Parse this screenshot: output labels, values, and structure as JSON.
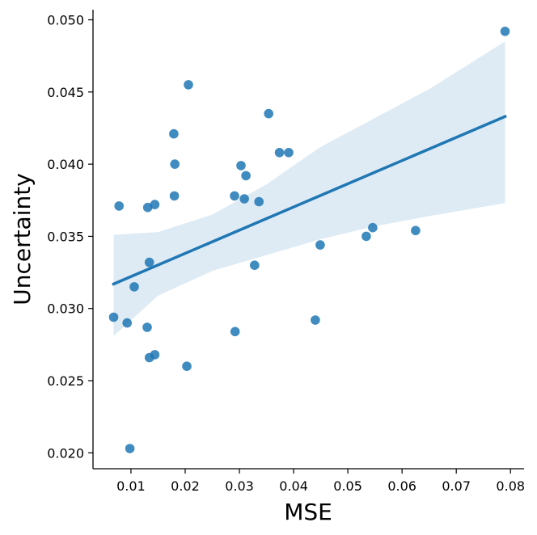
{
  "chart_data": {
    "type": "scatter",
    "title": "",
    "xlabel": "MSE",
    "ylabel": "Uncertainty",
    "xlim": [
      0.003,
      0.0825
    ],
    "ylim": [
      0.0189,
      0.0507
    ],
    "xticks": [
      0.01,
      0.02,
      0.03,
      0.04,
      0.05,
      0.06,
      0.07,
      0.08
    ],
    "xtick_labels": [
      "0.01",
      "0.02",
      "0.03",
      "0.04",
      "0.05",
      "0.06",
      "0.07",
      "0.08"
    ],
    "yticks": [
      0.02,
      0.025,
      0.03,
      0.035,
      0.04,
      0.045,
      0.05
    ],
    "ytick_labels": [
      "0.020",
      "0.025",
      "0.030",
      "0.035",
      "0.040",
      "0.045",
      "0.050"
    ],
    "grid": false,
    "colors": {
      "points": "#1f77b4",
      "line": "#1f77b4",
      "band": "#1f77b4"
    },
    "points": [
      {
        "x": 0.0068,
        "y": 0.0294
      },
      {
        "x": 0.0078,
        "y": 0.0371
      },
      {
        "x": 0.0093,
        "y": 0.029
      },
      {
        "x": 0.0098,
        "y": 0.0203
      },
      {
        "x": 0.0106,
        "y": 0.0315
      },
      {
        "x": 0.013,
        "y": 0.0287
      },
      {
        "x": 0.0131,
        "y": 0.037
      },
      {
        "x": 0.0134,
        "y": 0.0266
      },
      {
        "x": 0.0134,
        "y": 0.0332
      },
      {
        "x": 0.0144,
        "y": 0.0268
      },
      {
        "x": 0.0144,
        "y": 0.0372
      },
      {
        "x": 0.0179,
        "y": 0.0421
      },
      {
        "x": 0.018,
        "y": 0.0378
      },
      {
        "x": 0.0181,
        "y": 0.04
      },
      {
        "x": 0.0203,
        "y": 0.026
      },
      {
        "x": 0.0206,
        "y": 0.0455
      },
      {
        "x": 0.0291,
        "y": 0.0378
      },
      {
        "x": 0.0292,
        "y": 0.0284
      },
      {
        "x": 0.0303,
        "y": 0.0399
      },
      {
        "x": 0.0309,
        "y": 0.0376
      },
      {
        "x": 0.0312,
        "y": 0.0392
      },
      {
        "x": 0.0328,
        "y": 0.033
      },
      {
        "x": 0.0336,
        "y": 0.0374
      },
      {
        "x": 0.0354,
        "y": 0.0435
      },
      {
        "x": 0.0374,
        "y": 0.0408
      },
      {
        "x": 0.0391,
        "y": 0.0408
      },
      {
        "x": 0.044,
        "y": 0.0292
      },
      {
        "x": 0.0449,
        "y": 0.0344
      },
      {
        "x": 0.0534,
        "y": 0.035
      },
      {
        "x": 0.0546,
        "y": 0.0356
      },
      {
        "x": 0.0625,
        "y": 0.0354
      },
      {
        "x": 0.079,
        "y": 0.0492
      }
    ],
    "regression": {
      "x": [
        0.0068,
        0.079
      ],
      "y": [
        0.0317,
        0.0433
      ]
    },
    "confidence_band": {
      "x": [
        0.0068,
        0.015,
        0.025,
        0.035,
        0.045,
        0.055,
        0.065,
        0.079
      ],
      "upper": [
        0.0351,
        0.0353,
        0.0365,
        0.0386,
        0.0412,
        0.0432,
        0.0452,
        0.0485
      ],
      "lower": [
        0.0281,
        0.0309,
        0.0326,
        0.0337,
        0.0348,
        0.0357,
        0.0364,
        0.0373
      ]
    }
  }
}
